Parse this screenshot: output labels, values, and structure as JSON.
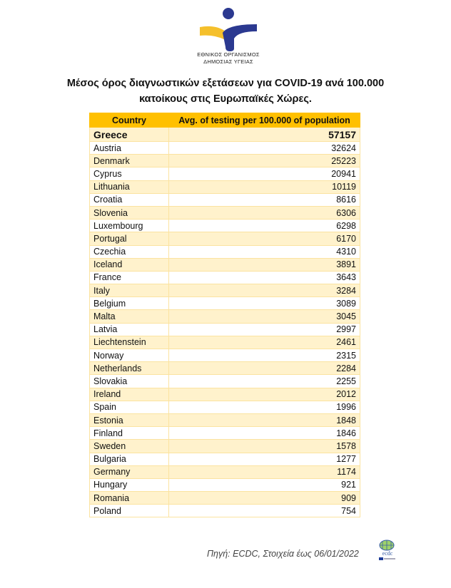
{
  "header": {
    "logo_text_line1": "ΕΘΝΙΚΟΣ ΟΡΓΑΝΙΣΜΟΣ",
    "logo_text_line2": "ΔΗΜΟΣΙΑΣ ΥΓΕΙΑΣ",
    "title_line1": "Μέσος όρος διαγνωστικών εξετάσεων για COVID-19 ανά 100.000",
    "title_line2": "κατοίκους στις Ευρωπαϊκές Χώρες."
  },
  "table": {
    "columns": [
      "Country",
      "Avg. of testing per 100.000 of population"
    ],
    "rows": [
      [
        "Greece",
        "57157"
      ],
      [
        "Austria",
        "32624"
      ],
      [
        "Denmark",
        "25223"
      ],
      [
        "Cyprus",
        "20941"
      ],
      [
        "Lithuania",
        "10119"
      ],
      [
        "Croatia",
        "8616"
      ],
      [
        "Slovenia",
        "6306"
      ],
      [
        "Luxembourg",
        "6298"
      ],
      [
        "Portugal",
        "6170"
      ],
      [
        "Czechia",
        "4310"
      ],
      [
        "Iceland",
        "3891"
      ],
      [
        "France",
        "3643"
      ],
      [
        "Italy",
        "3284"
      ],
      [
        "Belgium",
        "3089"
      ],
      [
        "Malta",
        "3045"
      ],
      [
        "Latvia",
        "2997"
      ],
      [
        "Liechtenstein",
        "2461"
      ],
      [
        "Norway",
        "2315"
      ],
      [
        "Netherlands",
        "2284"
      ],
      [
        "Slovakia",
        "2255"
      ],
      [
        "Ireland",
        "2012"
      ],
      [
        "Spain",
        "1996"
      ],
      [
        "Estonia",
        "1848"
      ],
      [
        "Finland",
        "1846"
      ],
      [
        "Sweden",
        "1578"
      ],
      [
        "Bulgaria",
        "1277"
      ],
      [
        "Germany",
        "1174"
      ],
      [
        "Hungary",
        "921"
      ],
      [
        "Romania",
        "909"
      ],
      [
        "Poland",
        "754"
      ]
    ]
  },
  "footer": {
    "source": "Πηγή: ECDC, Στοιχεία έως 06/01/2022",
    "ecdc_logo_text": "ecdc"
  },
  "colors": {
    "header": "#ffc000",
    "alt_row": "#fff2cc",
    "logo_blue": "#2b3990",
    "logo_yellow": "#f5c02c"
  }
}
